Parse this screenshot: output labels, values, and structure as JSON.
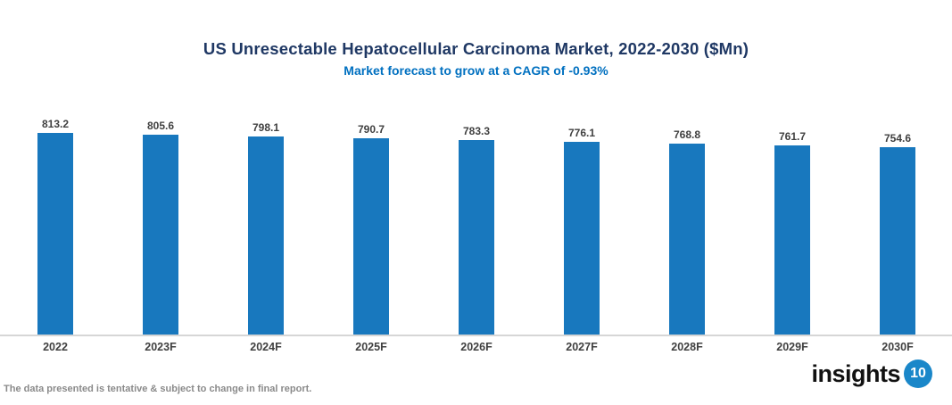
{
  "header": {
    "title": "US Unresectable Hepatocellular Carcinoma Market, 2022-2030 ($Mn)",
    "subtitle": "Market forecast to grow at a CAGR of -0.93%"
  },
  "chart_data": {
    "type": "bar",
    "categories": [
      "2022",
      "2023F",
      "2024F",
      "2025F",
      "2026F",
      "2027F",
      "2028F",
      "2029F",
      "2030F"
    ],
    "values": [
      813.2,
      805.6,
      798.1,
      790.7,
      783.3,
      776.1,
      768.8,
      761.7,
      754.6
    ],
    "title": "US Unresectable Hepatocellular Carcinoma Market, 2022-2030 ($Mn)",
    "subtitle": "Market forecast to grow at a CAGR of -0.93%",
    "xlabel": "",
    "ylabel": "",
    "ylim": [
      0,
      850
    ],
    "grid": false,
    "legend": "none",
    "data_labels": true,
    "bar_color": "#1878be",
    "label_color": "#404040",
    "axis_line_color": "#d6d6d6"
  },
  "colors": {
    "title": "#1f3864",
    "subtitle": "#0070c0",
    "bar": "#1878be",
    "logo_circle": "#1a87c9"
  },
  "footer": {
    "note": "The data presented is tentative & subject to change in final report.",
    "logo_text": "insights",
    "logo_number": "10"
  }
}
